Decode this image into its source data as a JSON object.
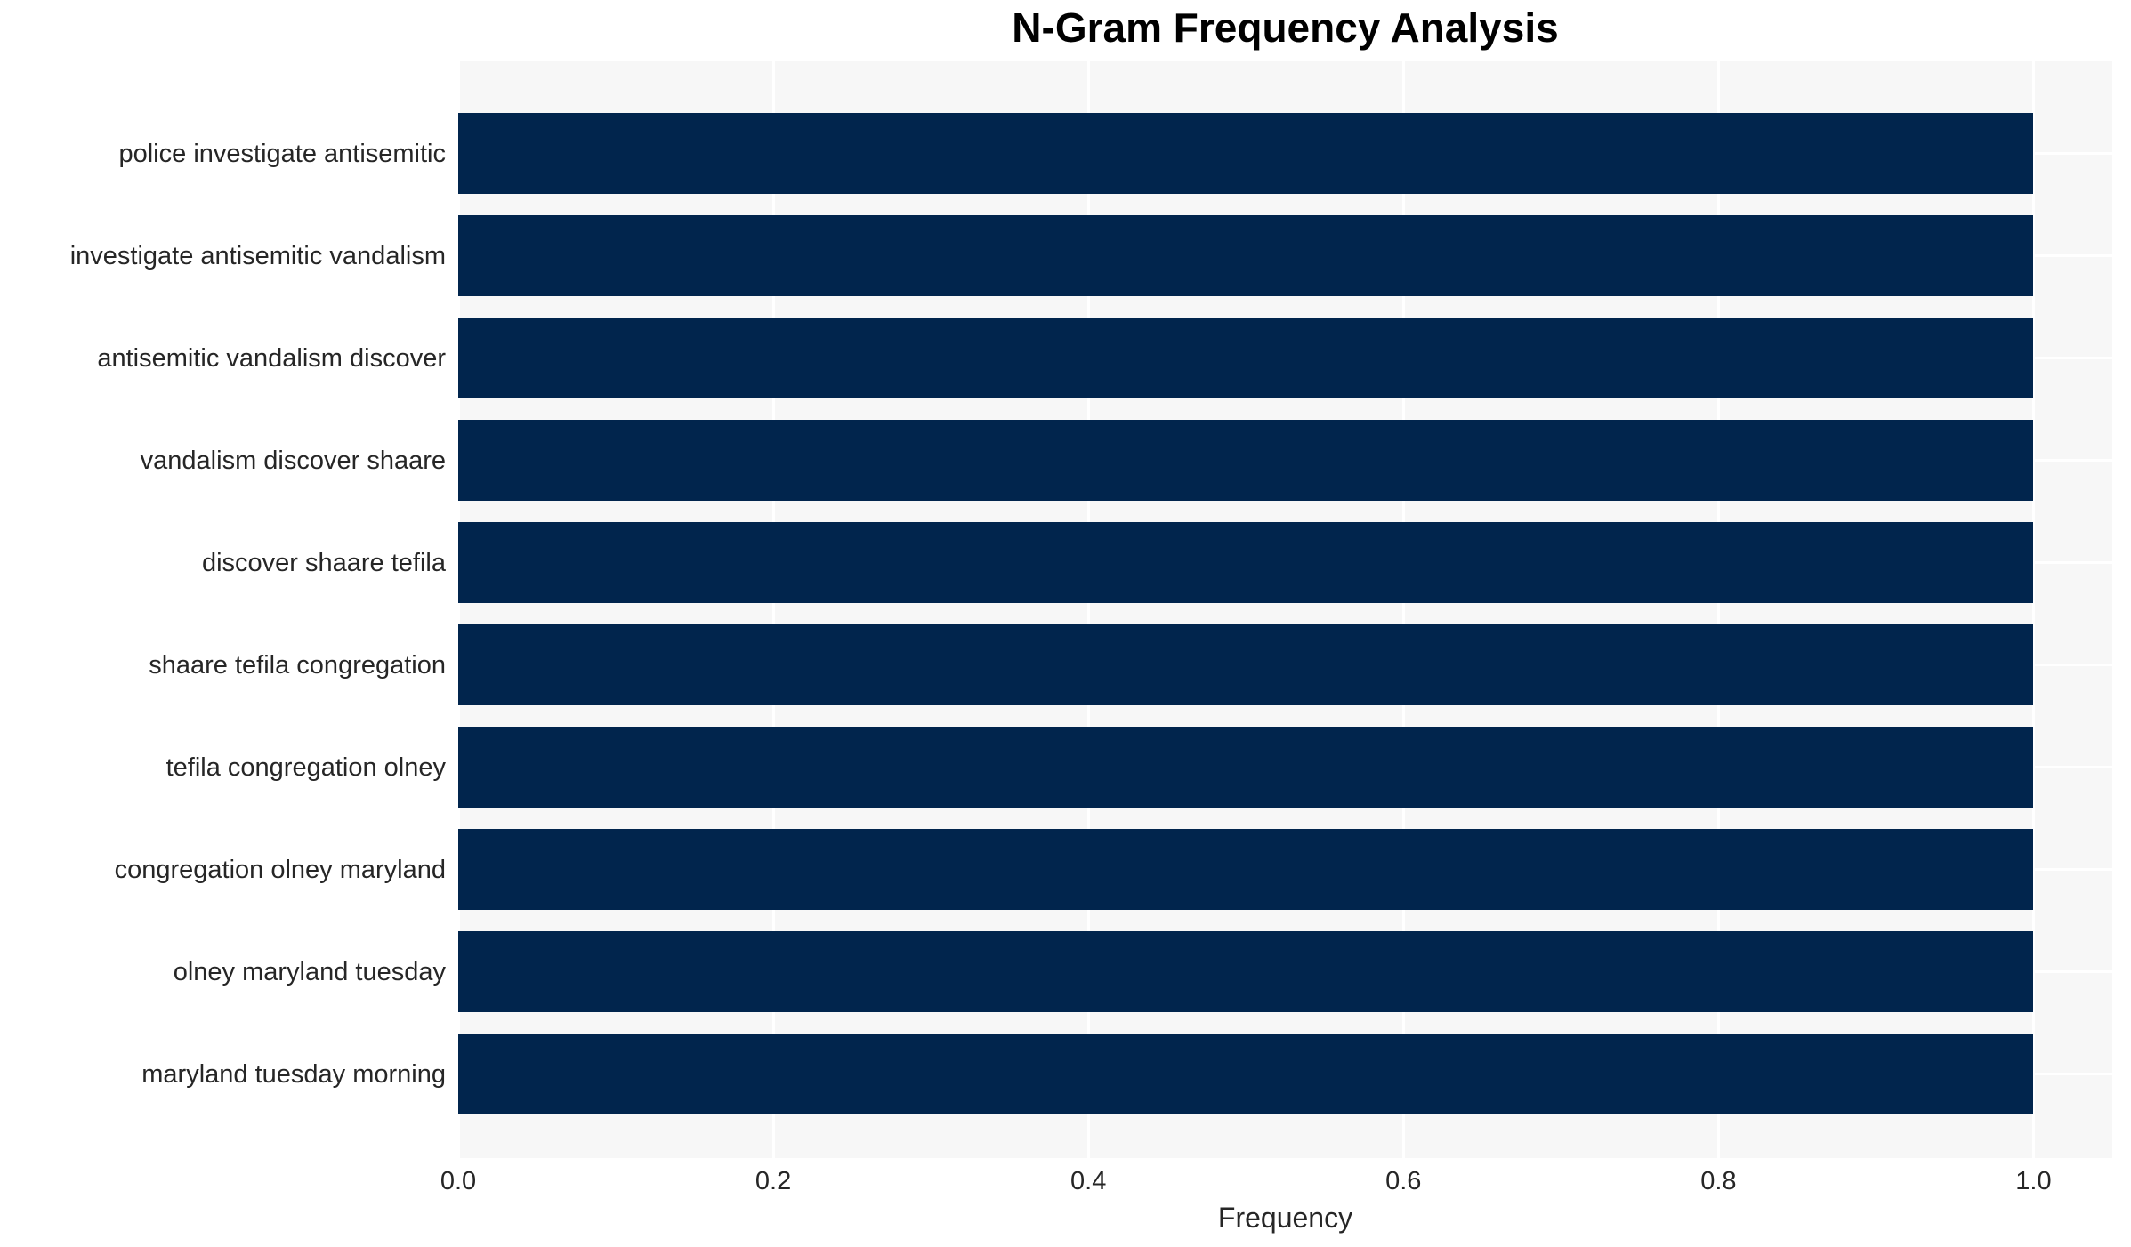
{
  "chart_data": {
    "type": "bar",
    "orientation": "horizontal",
    "title": "N-Gram Frequency Analysis",
    "xlabel": "Frequency",
    "ylabel": "",
    "categories": [
      "police investigate antisemitic",
      "investigate antisemitic vandalism",
      "antisemitic vandalism discover",
      "vandalism discover shaare",
      "discover shaare tefila",
      "shaare tefila congregation",
      "tefila congregation olney",
      "congregation olney maryland",
      "olney maryland tuesday",
      "maryland tuesday morning"
    ],
    "values": [
      1.0,
      1.0,
      1.0,
      1.0,
      1.0,
      1.0,
      1.0,
      1.0,
      1.0,
      1.0
    ],
    "xticks": [
      0.0,
      0.2,
      0.4,
      0.6,
      0.8,
      1.0
    ],
    "xtick_labels": [
      "0.0",
      "0.2",
      "0.4",
      "0.6",
      "0.8",
      "1.0"
    ],
    "xlim": [
      0,
      1.05
    ],
    "grid": true,
    "legend_position": "none",
    "colors": {
      "bar": "#01254d",
      "plot_background": "#f7f7f7",
      "figure_background": "#ffffff",
      "gridline": "#ffffff",
      "tick_text": "#262626",
      "title_text": "#000000"
    }
  }
}
